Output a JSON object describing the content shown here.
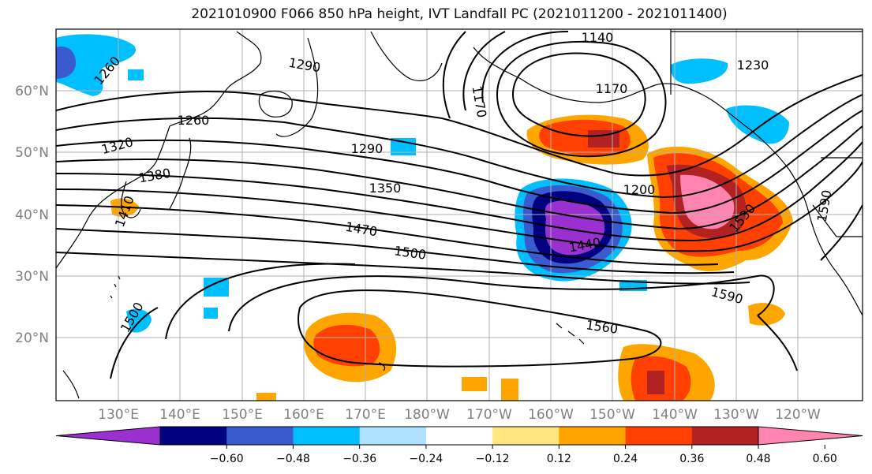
{
  "title": "2021010900 F066 850 hPa height, IVT Landfall PC (2021011200 - 2021011400)",
  "lat_labels": [
    "60°N",
    "50°N",
    "40°N",
    "30°N",
    "20°N"
  ],
  "lon_labels": [
    "130°E",
    "140°E",
    "150°E",
    "160°E",
    "170°E",
    "180°W",
    "170°W",
    "160°W",
    "150°W",
    "140°W",
    "130°W",
    "120°W"
  ],
  "contour_labels": [
    "1140",
    "1170",
    "1170",
    "1200",
    "1230",
    "1260",
    "1260",
    "1290",
    "1290",
    "1320",
    "1350",
    "1380",
    "1410",
    "1440",
    "1470",
    "1500",
    "1500",
    "1530",
    "1560",
    "1590",
    "1590",
    "1260"
  ],
  "colorbar": {
    "ticks": [
      "−0.60",
      "−0.48",
      "−0.36",
      "−0.24",
      "−0.12",
      "0.12",
      "0.24",
      "0.36",
      "0.48",
      "0.60"
    ],
    "colors": [
      "#9b30d0",
      "#000080",
      "#3a5acf",
      "#00bfff",
      "#b0e0ff",
      "#ffffff",
      "#ffe680",
      "#ffa500",
      "#ff4000",
      "#b22222",
      "#ff85b0"
    ]
  }
}
